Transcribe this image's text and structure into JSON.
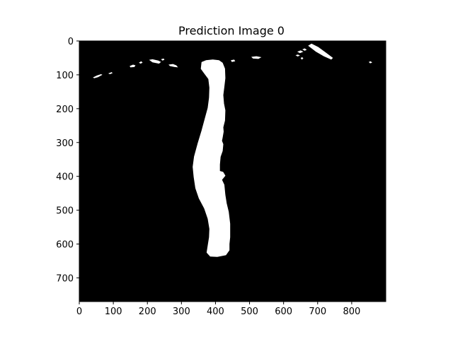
{
  "chart_data": {
    "type": "heatmap",
    "title": "Prediction Image 0",
    "xlabel": "",
    "ylabel": "",
    "xlim": [
      0,
      900
    ],
    "ylim": [
      770,
      0
    ],
    "x_ticks": [
      0,
      100,
      200,
      300,
      400,
      500,
      600,
      700,
      800
    ],
    "y_ticks": [
      0,
      100,
      200,
      300,
      400,
      500,
      600,
      700
    ],
    "grid": false,
    "colormap": {
      "background": "#000000",
      "foreground": "#ffffff"
    },
    "main_mask_outline": [
      [
        360,
        63
      ],
      [
        372,
        58
      ],
      [
        392,
        56
      ],
      [
        410,
        58
      ],
      [
        420,
        65
      ],
      [
        427,
        82
      ],
      [
        428,
        110
      ],
      [
        425,
        135
      ],
      [
        422,
        160
      ],
      [
        424,
        185
      ],
      [
        428,
        205
      ],
      [
        427,
        235
      ],
      [
        422,
        255
      ],
      [
        423,
        268
      ],
      [
        420,
        285
      ],
      [
        418,
        295
      ],
      [
        422,
        305
      ],
      [
        420,
        325
      ],
      [
        414,
        342
      ],
      [
        412,
        365
      ],
      [
        412,
        385
      ],
      [
        422,
        388
      ],
      [
        428,
        398
      ],
      [
        418,
        410
      ],
      [
        425,
        425
      ],
      [
        428,
        455
      ],
      [
        432,
        480
      ],
      [
        438,
        505
      ],
      [
        442,
        540
      ],
      [
        442,
        580
      ],
      [
        440,
        600
      ],
      [
        440,
        618
      ],
      [
        430,
        632
      ],
      [
        405,
        637
      ],
      [
        385,
        636
      ],
      [
        375,
        625
      ],
      [
        378,
        605
      ],
      [
        382,
        580
      ],
      [
        383,
        555
      ],
      [
        378,
        525
      ],
      [
        368,
        495
      ],
      [
        352,
        465
      ],
      [
        342,
        435
      ],
      [
        337,
        402
      ],
      [
        334,
        372
      ],
      [
        338,
        342
      ],
      [
        348,
        305
      ],
      [
        360,
        265
      ],
      [
        370,
        228
      ],
      [
        378,
        198
      ],
      [
        382,
        168
      ],
      [
        383,
        138
      ],
      [
        380,
        112
      ],
      [
        368,
        96
      ],
      [
        358,
        82
      ]
    ],
    "small_blobs": [
      [
        [
          40,
          108
        ],
        [
          52,
          102
        ],
        [
          64,
          98
        ],
        [
          68,
          100
        ],
        [
          55,
          107
        ],
        [
          44,
          110
        ]
      ],
      [
        [
          85,
          96
        ],
        [
          95,
          92
        ],
        [
          98,
          95
        ],
        [
          90,
          98
        ]
      ],
      [
        [
          148,
          74
        ],
        [
          158,
          70
        ],
        [
          165,
          72
        ],
        [
          162,
          77
        ],
        [
          150,
          78
        ]
      ],
      [
        [
          175,
          64
        ],
        [
          182,
          60
        ],
        [
          186,
          64
        ],
        [
          180,
          67
        ]
      ],
      [
        [
          205,
          56
        ],
        [
          215,
          54
        ],
        [
          232,
          58
        ],
        [
          240,
          62
        ],
        [
          234,
          67
        ],
        [
          215,
          63
        ]
      ],
      [
        [
          240,
          54
        ],
        [
          248,
          52
        ],
        [
          250,
          56
        ],
        [
          244,
          58
        ]
      ],
      [
        [
          262,
          70
        ],
        [
          275,
          68
        ],
        [
          285,
          72
        ],
        [
          290,
          78
        ],
        [
          280,
          77
        ],
        [
          266,
          74
        ]
      ],
      [
        [
          445,
          57
        ],
        [
          455,
          55
        ],
        [
          458,
          60
        ],
        [
          448,
          62
        ]
      ],
      [
        [
          505,
          47
        ],
        [
          520,
          45
        ],
        [
          535,
          48
        ],
        [
          526,
          53
        ],
        [
          510,
          52
        ]
      ],
      [
        [
          635,
          42
        ],
        [
          642,
          40
        ],
        [
          648,
          43
        ],
        [
          641,
          46
        ]
      ],
      [
        [
          650,
          50
        ],
        [
          655,
          48
        ],
        [
          658,
          52
        ],
        [
          653,
          55
        ]
      ],
      [
        [
          655,
          25
        ],
        [
          662,
          22
        ],
        [
          668,
          26
        ],
        [
          662,
          29
        ]
      ],
      [
        [
          640,
          32
        ],
        [
          650,
          28
        ],
        [
          658,
          32
        ],
        [
          648,
          36
        ]
      ],
      [
        [
          672,
          14
        ],
        [
          682,
          8
        ],
        [
          702,
          18
        ],
        [
          725,
          35
        ],
        [
          745,
          50
        ],
        [
          740,
          55
        ],
        [
          718,
          45
        ],
        [
          695,
          32
        ]
      ],
      [
        [
          850,
          62
        ],
        [
          856,
          60
        ],
        [
          860,
          64
        ],
        [
          854,
          66
        ]
      ]
    ]
  }
}
